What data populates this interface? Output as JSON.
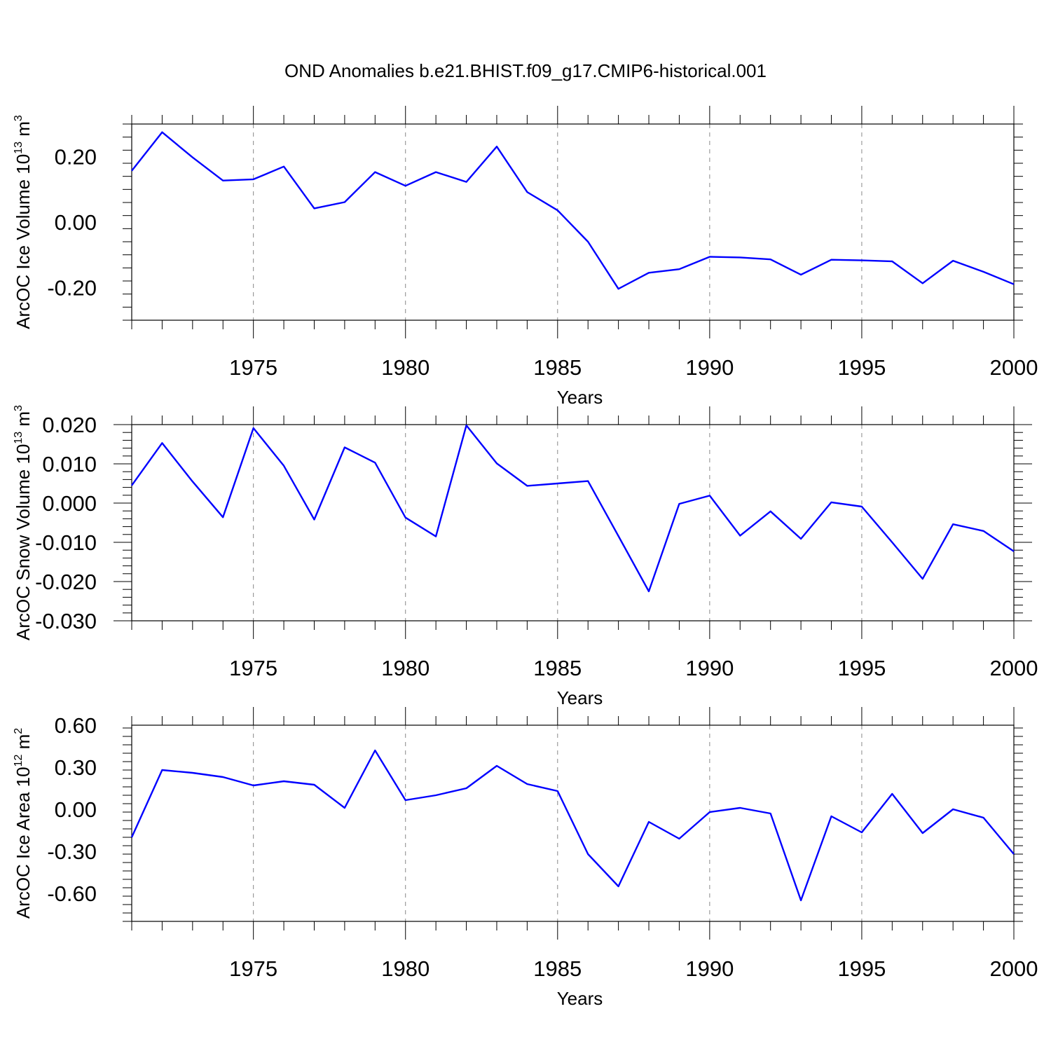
{
  "title": "OND Anomalies b.e21.BHIST.f09_g17.CMIP6-historical.001",
  "colors": {
    "line": "#0000ff",
    "axis": "#000000",
    "grid": "#888888"
  },
  "chart_data": [
    {
      "type": "line",
      "ylabel_main": "ArcOC Ice Volume 10",
      "ylabel_exp": "13",
      "ylabel_unit": " m",
      "ylabel_unit_exp": "3",
      "xlabel": "Years",
      "xlim": [
        1971,
        2000
      ],
      "ylim": [
        -0.3,
        0.3
      ],
      "xticks": [
        1975,
        1980,
        1985,
        1990,
        1995,
        2000
      ],
      "yticks": [
        0.2,
        0.0,
        -0.2
      ],
      "ytick_labels": [
        "0.20",
        "0.00",
        "-0.20"
      ],
      "grid": "vertical dashed at major x ticks",
      "x": [
        1971,
        1972,
        1973,
        1974,
        1975,
        1976,
        1977,
        1978,
        1979,
        1980,
        1981,
        1982,
        1983,
        1984,
        1985,
        1986,
        1987,
        1988,
        1989,
        1990,
        1991,
        1992,
        1993,
        1994,
        1995,
        1996,
        1997,
        1998,
        1999,
        2000
      ],
      "series": [
        {
          "values": [
            0.157,
            0.275,
            0.198,
            0.127,
            0.131,
            0.17,
            0.042,
            0.061,
            0.153,
            0.111,
            0.153,
            0.123,
            0.231,
            0.092,
            0.036,
            -0.06,
            -0.204,
            -0.155,
            -0.144,
            -0.106,
            -0.108,
            -0.114,
            -0.161,
            -0.115,
            -0.117,
            -0.12,
            -0.187,
            -0.118,
            -0.152,
            -0.19
          ]
        }
      ]
    },
    {
      "type": "line",
      "ylabel_main": "ArcOC Snow Volume 10",
      "ylabel_exp": "13",
      "ylabel_unit": " m",
      "ylabel_unit_exp": "3",
      "xlabel": "Years",
      "xlim": [
        1971,
        2000
      ],
      "ylim": [
        -0.03,
        0.02
      ],
      "xticks": [
        1975,
        1980,
        1985,
        1990,
        1995,
        2000
      ],
      "yticks": [
        0.02,
        0.01,
        0.0,
        -0.01,
        -0.02,
        -0.03
      ],
      "ytick_labels": [
        "0.020",
        "0.010",
        "0.000",
        "-0.010",
        "-0.020",
        "-0.030"
      ],
      "grid": "vertical dashed at major x ticks",
      "x": [
        1971,
        1972,
        1973,
        1974,
        1975,
        1976,
        1977,
        1978,
        1979,
        1980,
        1981,
        1982,
        1983,
        1984,
        1985,
        1986,
        1987,
        1988,
        1989,
        1990,
        1991,
        1992,
        1993,
        1994,
        1995,
        1996,
        1997,
        1998,
        1999,
        2000
      ],
      "series": [
        {
          "values": [
            0.0045,
            0.0153,
            0.0055,
            -0.0036,
            0.0191,
            0.0095,
            -0.0042,
            0.0142,
            0.0103,
            -0.0037,
            -0.0085,
            0.0198,
            0.0101,
            0.0044,
            0.005,
            0.0056,
            -0.0084,
            -0.0225,
            -0.0002,
            0.0019,
            -0.0083,
            -0.0021,
            -0.0091,
            0.0002,
            -0.0009,
            -0.01,
            -0.0193,
            -0.0054,
            -0.0071,
            -0.0123
          ]
        }
      ]
    },
    {
      "type": "line",
      "ylabel_main": "ArcOC Ice Area 10",
      "ylabel_exp": "12",
      "ylabel_unit": " m",
      "ylabel_unit_exp": "2",
      "xlabel": "Years",
      "xlim": [
        1971,
        2000
      ],
      "ylim": [
        -0.8,
        0.6
      ],
      "xticks": [
        1975,
        1980,
        1985,
        1990,
        1995,
        2000
      ],
      "yticks": [
        0.6,
        0.3,
        0.0,
        -0.3,
        -0.6
      ],
      "ytick_labels": [
        "0.60",
        "0.30",
        "0.00",
        "-0.30",
        "-0.60"
      ],
      "grid": "vertical dashed at major x ticks",
      "x": [
        1971,
        1972,
        1973,
        1974,
        1975,
        1976,
        1977,
        1978,
        1979,
        1980,
        1981,
        1982,
        1983,
        1984,
        1985,
        1986,
        1987,
        1988,
        1989,
        1990,
        1991,
        1992,
        1993,
        1994,
        1995,
        1996,
        1997,
        1998,
        1999,
        2000
      ],
      "series": [
        {
          "values": [
            -0.2,
            0.28,
            0.26,
            0.23,
            0.17,
            0.2,
            0.175,
            0.01,
            0.42,
            0.065,
            0.1,
            0.15,
            0.31,
            0.18,
            0.13,
            -0.32,
            -0.55,
            -0.09,
            -0.21,
            -0.02,
            0.01,
            -0.03,
            -0.65,
            -0.05,
            -0.165,
            0.11,
            -0.17,
            0.0,
            -0.06,
            -0.32
          ]
        }
      ]
    }
  ]
}
